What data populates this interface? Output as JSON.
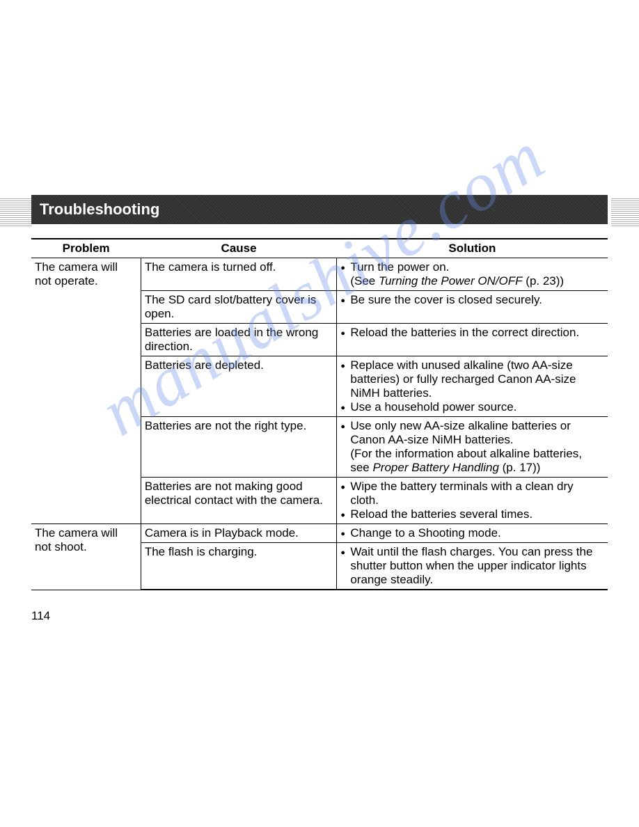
{
  "header": {
    "title": "Troubleshooting"
  },
  "table": {
    "columns": [
      "Problem",
      "Cause",
      "Solution"
    ],
    "col_widths": [
      "19%",
      "34%",
      "47%"
    ],
    "border_color": "#000000",
    "font_size": 17,
    "groups": [
      {
        "problem": "The camera will not operate.",
        "rows": [
          {
            "cause": "The camera is turned off.",
            "solutions": [
              {
                "text": "Turn the power on.",
                "sub": "(See ",
                "italic": "Turning the Power ON/OFF",
                "after": " (p. 23))"
              }
            ]
          },
          {
            "cause": "The SD card slot/battery cover is open.",
            "solutions": [
              {
                "text": "Be sure the cover is closed securely."
              }
            ]
          },
          {
            "cause": "Batteries are loaded in the wrong direction.",
            "solutions": [
              {
                "text": "Reload the batteries in the correct direction."
              }
            ]
          },
          {
            "cause": "Batteries are depleted.",
            "solutions": [
              {
                "text": "Replace with unused alkaline (two AA-size batteries) or fully recharged Canon AA-size NiMH batteries."
              },
              {
                "text": "Use a household power source."
              }
            ]
          },
          {
            "cause": "Batteries are not the right type.",
            "solutions": [
              {
                "text": "Use only new AA-size alkaline batteries or Canon AA-size NiMH batteries.",
                "sub": "(For the information about alkaline batteries, see ",
                "italic": "Proper Battery Handling",
                "after": " (p. 17))"
              }
            ]
          },
          {
            "cause": "Batteries are not making good electrical contact with the camera.",
            "solutions": [
              {
                "text": "Wipe the battery terminals with a clean dry cloth."
              },
              {
                "text": "Reload the batteries several times."
              }
            ]
          }
        ]
      },
      {
        "problem": "The camera will not shoot.",
        "rows": [
          {
            "cause": "Camera is in Playback mode.",
            "solutions": [
              {
                "text": "Change to a Shooting mode."
              }
            ]
          },
          {
            "cause": "The flash is charging.",
            "solutions": [
              {
                "text": "Wait until the flash charges. You can press the shutter button when the upper indicator lights orange steadily."
              }
            ]
          }
        ]
      }
    ]
  },
  "page_number": "114",
  "watermark": "manualshive.com",
  "colors": {
    "header_bg": "#3a3a3a",
    "header_text": "#ffffff",
    "body_bg": "#ffffff",
    "text": "#000000",
    "watermark": "#6b8fe8"
  }
}
